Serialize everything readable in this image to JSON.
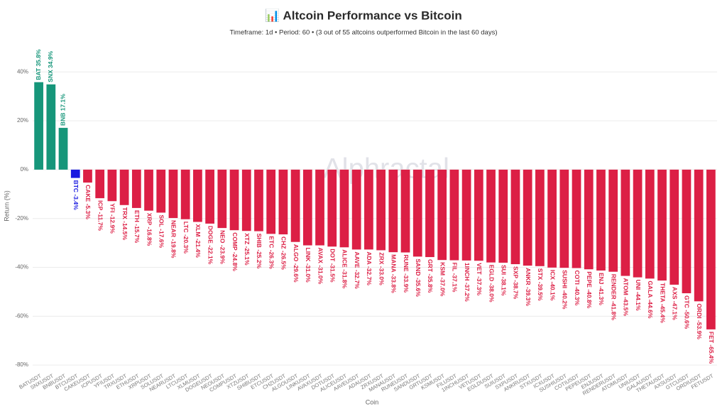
{
  "chart_data": {
    "type": "bar",
    "title": "📊 Altcoin Performance vs Bitcoin",
    "subtitle": "Timeframe: 1d  •  Period: 60  •  (3 out of 55 altcoins outperformed Bitcoin in the last 60 days)",
    "watermark": "Alphractal",
    "x_label": "Coin",
    "y_label": "Return (%)",
    "categories": [
      "BATUSDT",
      "SNXUSDT",
      "BNBUSDT",
      "BTCUSDT",
      "CAKEUSDT",
      "ICPUSDT",
      "YFIUSDT",
      "TRXUSDT",
      "ETHUSDT",
      "XRPUSDT",
      "SOLUSDT",
      "NEARUSDT",
      "LTCUSDT",
      "XLMUSDT",
      "DOGEUSDT",
      "NEOUSDT",
      "COMPUSDT",
      "XTZUSDT",
      "SHIBUSDT",
      "ETCUSDT",
      "CHZUSDT",
      "ALGOUSDT",
      "LINKUSDT",
      "AVAXUSDT",
      "DOTUSDT",
      "ALICEUSDT",
      "AAVEUSDT",
      "ADAUSDT",
      "ZRXUSDT",
      "MANAUSDT",
      "RUNEUSDT",
      "SANDUSDT",
      "GRTUSDT",
      "KSMUSDT",
      "FILUSDT",
      "1INCHUSDT",
      "VETUSDT",
      "EGLDUSDT",
      "SUIUSDT",
      "SXPUSDT",
      "ANKRUSDT",
      "STXUSDT",
      "ICXUSDT",
      "SUSHIUSDT",
      "COTIUSDT",
      "PEPEUSDT",
      "ENJUSDT",
      "RENDERUSDT",
      "ATOMUSDT",
      "UNIUSDT",
      "GALAUSDT",
      "THETAUSDT",
      "AXSUSDT",
      "GTCUSDT",
      "ORDIUSDT",
      "FETUSDT"
    ],
    "values": [
      35.8,
      34.9,
      17.1,
      -3.4,
      -5.3,
      -11.7,
      -12.9,
      -14.5,
      -15.7,
      -16.8,
      -17.6,
      -19.8,
      -20.3,
      -21.4,
      -22.1,
      -23.9,
      -24.8,
      -25.1,
      -25.2,
      -26.3,
      -26.5,
      -29.6,
      -31.0,
      -31.0,
      -31.5,
      -31.8,
      -32.7,
      -32.7,
      -33.0,
      -33.8,
      -33.9,
      -35.6,
      -35.8,
      -37.0,
      -37.1,
      -37.2,
      -37.3,
      -38.0,
      -38.1,
      -38.7,
      -39.3,
      -39.5,
      -40.1,
      -40.2,
      -40.3,
      -40.8,
      -41.3,
      -41.8,
      -43.5,
      -44.1,
      -44.6,
      -45.4,
      -47.1,
      -50.6,
      -53.9,
      -65.4
    ],
    "value_labels": [
      "BAT 35.8%",
      "SNX 34.9%",
      "BNB 17.1%",
      "BTC -3.4%",
      "CAKE -5.3%",
      "ICP -11.7%",
      "YFI -12.9%",
      "TRX -14.5%",
      "ETH -15.7%",
      "XRP -16.8%",
      "SOL -17.6%",
      "NEAR -19.8%",
      "LTC -20.3%",
      "XLM -21.4%",
      "DOGE -22.1%",
      "NEO -23.9%",
      "COMP -24.8%",
      "XTZ -25.1%",
      "SHIB -25.2%",
      "ETC -26.3%",
      "CHZ -26.5%",
      "ALGO -29.6%",
      "LINK -31.0%",
      "AVAX -31.0%",
      "DOT -31.5%",
      "ALICE -31.8%",
      "AAVE -32.7%",
      "ADA -32.7%",
      "ZRX -33.0%",
      "MANA -33.8%",
      "RUNE -33.9%",
      "SAND -35.6%",
      "GRT -35.8%",
      "KSM -37.0%",
      "FIL -37.1%",
      "1INCH -37.2%",
      "VET -37.3%",
      "EGLD -38.0%",
      "SUI -38.1%",
      "SXP -38.7%",
      "ANKR -39.3%",
      "STX -39.5%",
      "ICX -40.1%",
      "SUSHI -40.2%",
      "COTI -40.3%",
      "PEPE -40.8%",
      "ENJ -41.3%",
      "RENDER -41.8%",
      "ATOM -43.5%",
      "UNI -44.1%",
      "GALA -44.6%",
      "THETA -45.4%",
      "AXS -47.1%",
      "GTC -50.6%",
      "ORDI -53.9%",
      "FET -65.4%"
    ],
    "colors": [
      "#16967a",
      "#16967a",
      "#16967a",
      "#1a1ae0",
      "#dc1f45",
      "#dc1f45",
      "#dc1f45",
      "#dc1f45",
      "#dc1f45",
      "#dc1f45",
      "#dc1f45",
      "#dc1f45",
      "#dc1f45",
      "#dc1f45",
      "#dc1f45",
      "#dc1f45",
      "#dc1f45",
      "#dc1f45",
      "#dc1f45",
      "#dc1f45",
      "#dc1f45",
      "#dc1f45",
      "#dc1f45",
      "#dc1f45",
      "#dc1f45",
      "#dc1f45",
      "#dc1f45",
      "#dc1f45",
      "#dc1f45",
      "#dc1f45",
      "#dc1f45",
      "#dc1f45",
      "#dc1f45",
      "#dc1f45",
      "#dc1f45",
      "#dc1f45",
      "#dc1f45",
      "#dc1f45",
      "#dc1f45",
      "#dc1f45",
      "#dc1f45",
      "#dc1f45",
      "#dc1f45",
      "#dc1f45",
      "#dc1f45",
      "#dc1f45",
      "#dc1f45",
      "#dc1f45",
      "#dc1f45",
      "#dc1f45",
      "#dc1f45",
      "#dc1f45",
      "#dc1f45",
      "#dc1f45",
      "#dc1f45",
      "#dc1f45"
    ],
    "ylim": [
      -82,
      52
    ],
    "yticks": [
      {
        "value": -80,
        "label": "-80%"
      },
      {
        "value": -60,
        "label": "-60%"
      },
      {
        "value": -40,
        "label": "-40%"
      },
      {
        "value": -20,
        "label": "-20%"
      },
      {
        "value": 0,
        "label": "0%"
      },
      {
        "value": 20,
        "label": "20%"
      },
      {
        "value": 40,
        "label": "40%"
      }
    ],
    "grid": true
  }
}
